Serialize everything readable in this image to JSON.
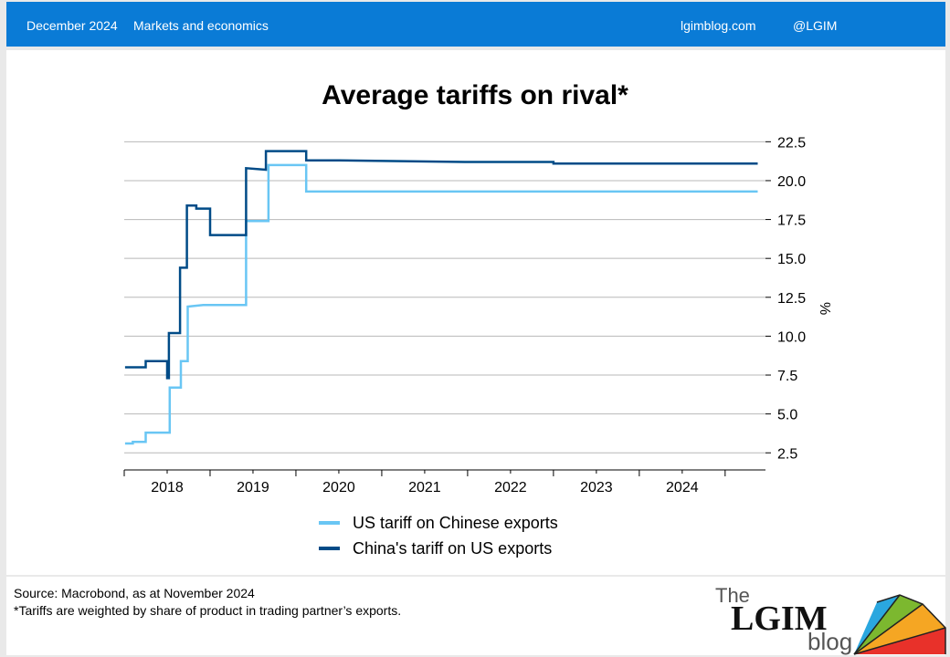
{
  "header": {
    "date": "December 2024",
    "section": "Markets and economics",
    "site": "lgimblog.com",
    "handle": "@LGIM"
  },
  "footer": {
    "source": "Source: Macrobond,  as at November 2024",
    "note": "*Tariffs are weighted by share of product in trading partner’s exports.",
    "logo_the": "The",
    "logo_main": "LGIM",
    "logo_blog": "blog"
  },
  "chart_data": {
    "type": "line",
    "title": "Average tariffs on rival*",
    "ylabel": "%",
    "xlim": [
      2017.5,
      2024.97
    ],
    "ylim": [
      1.4,
      23.4
    ],
    "y_ticks": [
      2.5,
      5.0,
      7.5,
      10.0,
      12.5,
      15.0,
      17.5,
      20.0,
      22.5
    ],
    "y_tick_labels": [
      "2.5",
      "5.0",
      "7.5",
      "10.0",
      "12.5",
      "15.0",
      "17.5",
      "20.0",
      "22.5"
    ],
    "x_tick_labels": [
      "2018",
      "2019",
      "2020",
      "2021",
      "2022",
      "2023",
      "2024"
    ],
    "grid": true,
    "legend_position": "bottom",
    "series": [
      {
        "name": "US tariff on Chinese exports",
        "color": "#69c6f4",
        "points": [
          [
            2017.51,
            3.1
          ],
          [
            2017.6,
            3.1
          ],
          [
            2017.6,
            3.2
          ],
          [
            2017.75,
            3.2
          ],
          [
            2017.75,
            3.8
          ],
          [
            2018.03,
            3.8
          ],
          [
            2018.03,
            6.7
          ],
          [
            2018.16,
            6.7
          ],
          [
            2018.16,
            8.4
          ],
          [
            2018.24,
            8.4
          ],
          [
            2018.24,
            11.9
          ],
          [
            2018.42,
            12.0
          ],
          [
            2018.92,
            12.0
          ],
          [
            2018.92,
            17.4
          ],
          [
            2019.18,
            17.4
          ],
          [
            2019.18,
            21.0
          ],
          [
            2019.62,
            21.0
          ],
          [
            2019.62,
            19.3
          ],
          [
            2020.6,
            19.3
          ],
          [
            2022.6,
            19.3
          ],
          [
            2024.88,
            19.3
          ]
        ]
      },
      {
        "name": "China's tariff on US exports",
        "color": "#004b87",
        "points": [
          [
            2017.51,
            8.0
          ],
          [
            2017.75,
            8.0
          ],
          [
            2017.75,
            8.4
          ],
          [
            2018.0,
            8.4
          ],
          [
            2018.0,
            7.3
          ],
          [
            2018.02,
            7.3
          ],
          [
            2018.02,
            10.2
          ],
          [
            2018.15,
            10.2
          ],
          [
            2018.15,
            14.4
          ],
          [
            2018.23,
            14.4
          ],
          [
            2018.23,
            18.4
          ],
          [
            2018.34,
            18.4
          ],
          [
            2018.34,
            18.2
          ],
          [
            2018.5,
            18.2
          ],
          [
            2018.5,
            16.5
          ],
          [
            2018.92,
            16.5
          ],
          [
            2018.92,
            20.8
          ],
          [
            2019.15,
            20.7
          ],
          [
            2019.15,
            21.9
          ],
          [
            2019.62,
            21.9
          ],
          [
            2019.62,
            21.3
          ],
          [
            2020.0,
            21.3
          ],
          [
            2021.5,
            21.2
          ],
          [
            2022.5,
            21.2
          ],
          [
            2022.5,
            21.1
          ],
          [
            2022.75,
            21.1
          ],
          [
            2022.75,
            21.1
          ],
          [
            2024.88,
            21.1
          ]
        ]
      }
    ]
  }
}
